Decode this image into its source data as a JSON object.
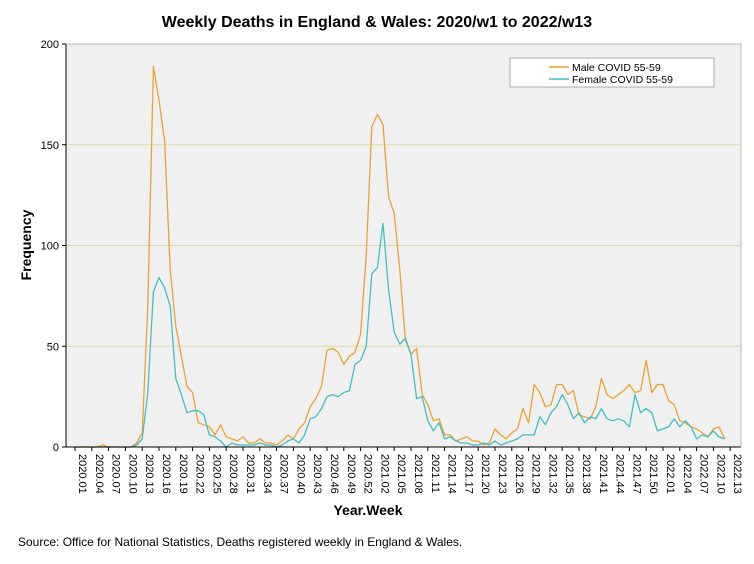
{
  "chart_data": {
    "type": "line",
    "title": "Weekly Deaths in England & Wales: 2020/w1 to 2022/w13",
    "xlabel": "Year.Week",
    "ylabel": "Frequency",
    "ylim": [
      0,
      200
    ],
    "yticks": [
      0,
      50,
      100,
      150,
      200
    ],
    "grid": "horizontal",
    "legend_position": "top-right",
    "background": "#f0f0f0",
    "gridline_color": "#d9d9a8",
    "x_tick_labels": [
      "2020.01",
      "2020.04",
      "2020.07",
      "2020.10",
      "2020.13",
      "2020.16",
      "2020.19",
      "2020.22",
      "2020.25",
      "2020.28",
      "2020.31",
      "2020.34",
      "2020.37",
      "2020.40",
      "2020.43",
      "2020.46",
      "2020.49",
      "2020.52",
      "2021.02",
      "2021.05",
      "2021.08",
      "2021.11",
      "2021.14",
      "2021.17",
      "2021.20",
      "2021.23",
      "2021.26",
      "2021.29",
      "2021.32",
      "2021.35",
      "2021.38",
      "2021.41",
      "2021.44",
      "2021.47",
      "2021.50",
      "2022.01",
      "2022.04",
      "2022.07",
      "2022.10",
      "2022.13"
    ],
    "series": [
      {
        "name": "Male COVID 55-59",
        "color": "#f0a030",
        "values": [
          0,
          0,
          0,
          0,
          0,
          1,
          0,
          0,
          0,
          0,
          0,
          2,
          7,
          70,
          189,
          172,
          152,
          88,
          60,
          45,
          30,
          27,
          12,
          11,
          10,
          6,
          11,
          5,
          4,
          3,
          5,
          2,
          2,
          4,
          2,
          2,
          1,
          3,
          6,
          4,
          9,
          12,
          20,
          24,
          30,
          48,
          49,
          47,
          41,
          45,
          47,
          56,
          95,
          159,
          165,
          160,
          124,
          116,
          88,
          53,
          46,
          49,
          26,
          21,
          13,
          14,
          6,
          6,
          3,
          4,
          5,
          3,
          3,
          1,
          2,
          9,
          6,
          4,
          7,
          9,
          19,
          12,
          31,
          27,
          20,
          21,
          31,
          31,
          26,
          28,
          16,
          15,
          14,
          20,
          34,
          26,
          24,
          26,
          28,
          31,
          27,
          28,
          43,
          27,
          31,
          31,
          23,
          21,
          13,
          12,
          10,
          9,
          7,
          5,
          9,
          10,
          4
        ]
      },
      {
        "name": "Female COVID 55-59",
        "color": "#40c0c0",
        "values": [
          0,
          0,
          0,
          0,
          0,
          0,
          0,
          0,
          0,
          0,
          0,
          1,
          4,
          27,
          77,
          84,
          79,
          70,
          34,
          26,
          17,
          18,
          18,
          16,
          6,
          5,
          3,
          0,
          2,
          1,
          1,
          1,
          1,
          2,
          1,
          1,
          0,
          1,
          3,
          4,
          2,
          6,
          14,
          15,
          19,
          25,
          26,
          25,
          27,
          28,
          41,
          43,
          50,
          86,
          89,
          111,
          78,
          57,
          51,
          54,
          46,
          24,
          25,
          13,
          8,
          12,
          4,
          5,
          3,
          2,
          2,
          1,
          1,
          2,
          1,
          3,
          1,
          2,
          3,
          4,
          6,
          6,
          6,
          15,
          11,
          17,
          20,
          26,
          21,
          14,
          17,
          12,
          15,
          14,
          19,
          14,
          13,
          14,
          13,
          10,
          26,
          17,
          19,
          17,
          8,
          9,
          10,
          14,
          10,
          13,
          10,
          4,
          6,
          5,
          8,
          5,
          4
        ]
      }
    ]
  },
  "source_note": "Source: Office for National Statistics, Deaths registered weekly in England & Wales."
}
